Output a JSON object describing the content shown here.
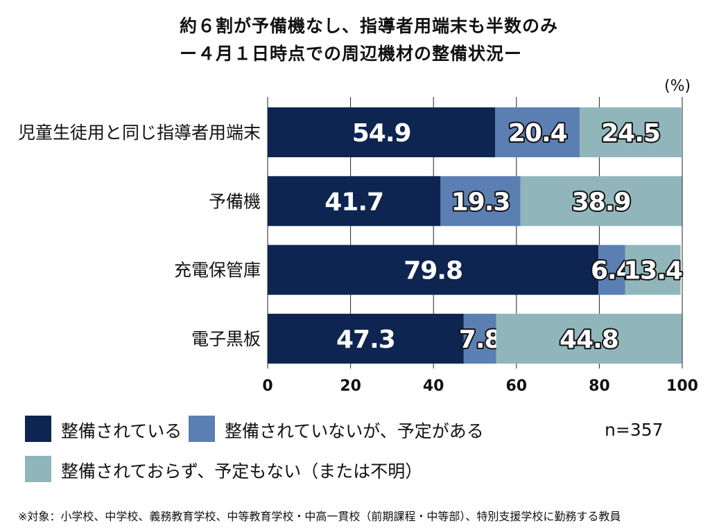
{
  "title": {
    "line1": "約６割が予備機なし、指導者用端末も半数のみ",
    "line2": "ー４月１日時点での周辺機材の整備状況ー"
  },
  "unit_label": "(%)",
  "sample_size": "n=357",
  "footnote": "※対象：小学校、中学校、義務教育学校、中等教育学校・中高一貫校（前期課程・中等部）、特別支援学校に勤務する教員",
  "colors": {
    "equipped": "#0d2550",
    "planned": "#5b7fb3",
    "none": "#90b6bb",
    "background": "#ffffff",
    "grid": "#222222"
  },
  "legend": [
    {
      "label": "整備されている",
      "color": "#0d2550"
    },
    {
      "label": "整備されていないが、予定がある",
      "color": "#5b7fb3"
    },
    {
      "label": "整備されておらず、予定もない（または不明）",
      "color": "#90b6bb"
    }
  ],
  "chart_data": {
    "type": "bar",
    "orientation": "horizontal",
    "stacked": true,
    "categories": [
      "児童生徒用と同じ指導者用端末",
      "予備機",
      "充電保管庫",
      "電子黒板"
    ],
    "series": [
      {
        "name": "整備されている",
        "values": [
          54.9,
          41.7,
          79.8,
          47.3
        ],
        "labels": [
          "54.9",
          "41.7",
          "79.8",
          "47.3"
        ]
      },
      {
        "name": "整備されていないが、予定がある",
        "values": [
          20.4,
          19.3,
          6.4,
          7.8
        ],
        "labels": [
          "20.4",
          "19.3",
          "6.4",
          "7.8"
        ]
      },
      {
        "name": "整備されておらず、予定もない（または不明）",
        "values": [
          24.5,
          38.9,
          13.4,
          44.8
        ],
        "labels": [
          "24.5",
          "38.9",
          "13.4",
          "44.8"
        ]
      }
    ],
    "xlim": [
      0,
      100
    ],
    "xticks": [
      0,
      20,
      40,
      60,
      80,
      100
    ],
    "xtick_labels": [
      "0",
      "20",
      "40",
      "60",
      "80",
      "100"
    ],
    "grid": "vertical",
    "legend_position": "bottom"
  }
}
